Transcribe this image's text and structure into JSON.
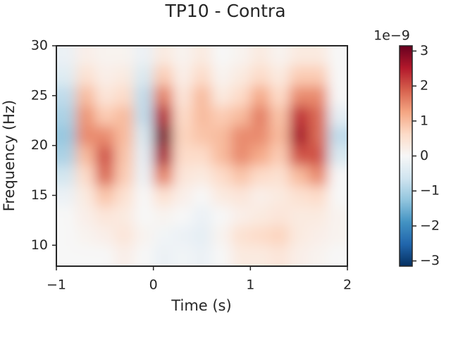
{
  "chart_data": {
    "type": "heatmap",
    "title": "TP10 - Contra",
    "x_label": "Time (s)",
    "y_label": "Frequency (Hz)",
    "x": [
      -0.9,
      -0.7,
      -0.5,
      -0.3,
      -0.1,
      0.1,
      0.3,
      0.5,
      0.7,
      0.9,
      1.1,
      1.3,
      1.5,
      1.7,
      1.9
    ],
    "y": [
      9,
      11,
      13,
      15,
      17,
      19,
      21,
      23,
      25,
      27,
      29
    ],
    "values": [
      [
        0,
        0,
        0,
        0.2,
        0,
        -0.2,
        -0.1,
        -0.2,
        0,
        0.3,
        0.3,
        0.4,
        0.2,
        0.1,
        0
      ],
      [
        0,
        0.1,
        0.2,
        0.4,
        0.1,
        -0.1,
        -0.2,
        -0.3,
        0.1,
        0.5,
        0.6,
        0.7,
        0.3,
        0.2,
        0.1
      ],
      [
        0,
        0.2,
        0.4,
        0.3,
        0,
        0.1,
        0,
        -0.2,
        0,
        0.2,
        0.3,
        0.4,
        0.3,
        0.3,
        0.1
      ],
      [
        -0.2,
        0.3,
        0.9,
        0.5,
        0,
        0.5,
        0.2,
        0,
        0.3,
        0.4,
        0.2,
        0.3,
        0.5,
        0.6,
        0
      ],
      [
        -0.6,
        0.6,
        1.8,
        0.8,
        -0.2,
        1.6,
        0.4,
        0.3,
        0.6,
        0.9,
        0.6,
        0.5,
        1.0,
        1.5,
        0
      ],
      [
        -1.0,
        1.0,
        2.0,
        0.9,
        -0.3,
        2.6,
        0.6,
        0.6,
        1.0,
        1.5,
        1.2,
        0.8,
        2.0,
        2.0,
        -0.5
      ],
      [
        -1.2,
        1.5,
        1.5,
        1.0,
        -0.5,
        3.0,
        0.7,
        0.9,
        1.0,
        1.5,
        1.5,
        1.0,
        2.6,
        1.8,
        -0.8
      ],
      [
        -1.0,
        1.4,
        0.8,
        1.0,
        -0.8,
        2.5,
        0.6,
        1.0,
        0.8,
        1.0,
        1.6,
        0.9,
        2.3,
        1.8,
        -0.3
      ],
      [
        -0.8,
        1.0,
        0.4,
        0.6,
        -0.8,
        1.6,
        0.4,
        1.0,
        0.3,
        0.6,
        1.2,
        0.6,
        1.5,
        1.5,
        0
      ],
      [
        -0.4,
        0.5,
        0.2,
        0.3,
        -0.5,
        0.8,
        0.2,
        0.6,
        0.1,
        0.3,
        0.6,
        0.3,
        0.8,
        0.8,
        0
      ],
      [
        -0.2,
        0.2,
        0.1,
        0.1,
        -0.2,
        0.3,
        0.1,
        0.3,
        0,
        0.1,
        0.3,
        0.1,
        0.3,
        0.3,
        0
      ]
    ],
    "colormap": [
      "#053061",
      "#2166ac",
      "#4393c3",
      "#92c5de",
      "#d1e5f0",
      "#f7f7f7",
      "#fddbc7",
      "#f4a582",
      "#d6604d",
      "#b2182b",
      "#67001f"
    ],
    "xlim": [
      -1,
      2
    ],
    "xticks": [
      {
        "value": -1,
        "label": "−1"
      },
      0,
      1,
      2
    ],
    "ylim": [
      7.9,
      30
    ],
    "yticks": [
      10,
      15,
      20,
      25,
      30
    ],
    "clim": [
      -3.15,
      3.15
    ],
    "cticks": [
      {
        "value": -3,
        "label": "−3"
      },
      {
        "value": -2,
        "label": "−2"
      },
      {
        "value": -1,
        "label": "−1"
      },
      0,
      1,
      2,
      3
    ],
    "colorbar_offset": "1e−9"
  }
}
